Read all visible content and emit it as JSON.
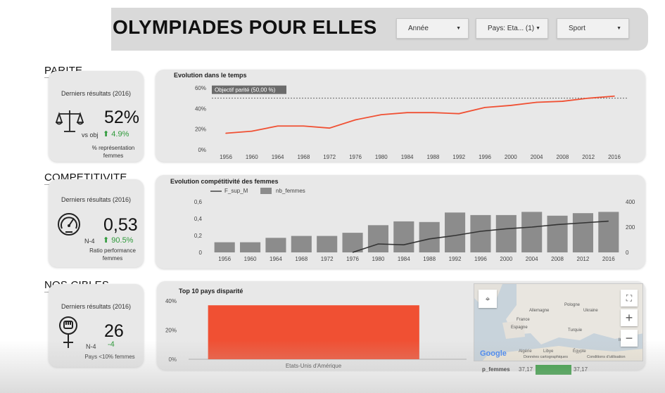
{
  "header": {
    "title": "OLYMPIADES POUR ELLES",
    "filters": [
      {
        "label": "Année"
      },
      {
        "label": "Pays: Eta... (1)"
      },
      {
        "label": "Sport"
      }
    ]
  },
  "colors": {
    "accent": "#f05033",
    "positive": "#2e9a3a",
    "bar_gray": "#8c8c8c",
    "panel": "#e8e8e8",
    "progress_green": "#2e9a3a"
  },
  "icons": {
    "parite": "balance-scale-icon",
    "competitivite": "speedometer-icon",
    "cibles": "female-fist-icon",
    "dropdown": "caret-down-icon"
  },
  "sections": {
    "parite": {
      "label": "PARITE",
      "kpi_title": "Derniers résultats (2016)",
      "value": "52%",
      "vs_label": "vs obj",
      "delta": "⬆ 4.9%",
      "caption_line1": "% représentation",
      "caption_line2": "femmes"
    },
    "competitivite": {
      "label": "COMPETITIVITE",
      "kpi_title": "Derniers résultats (2016)",
      "value": "0,53",
      "vs_label": "N-4",
      "delta": "⬆ 90.5%",
      "caption_line1": "Ratio performance",
      "caption_line2": "femmes"
    },
    "cibles": {
      "label": "NOS CIBLES",
      "kpi_title": "Derniers résultats (2016)",
      "value": "26",
      "vs_label": "N-4",
      "delta": "-4",
      "caption_line1": "Pays <10% femmes"
    }
  },
  "chart_data": [
    {
      "type": "line",
      "title": "Evolution dans le temps",
      "x": [
        "1956",
        "1960",
        "1964",
        "1968",
        "1972",
        "1976",
        "1980",
        "1984",
        "1988",
        "1992",
        "1996",
        "2000",
        "2004",
        "2008",
        "2012",
        "2016"
      ],
      "series": [
        {
          "values": [
            16,
            18,
            23,
            23,
            21,
            29,
            34,
            36,
            36,
            35,
            41,
            43,
            46,
            47,
            50,
            52
          ]
        }
      ],
      "ylim": [
        0,
        60
      ],
      "yticks": [
        "0%",
        "20%",
        "40%",
        "60%"
      ],
      "reference_line": {
        "label": "Objectif parité (50,00 %)",
        "value": 50
      },
      "xlabel": "",
      "ylabel": "",
      "grid": false
    },
    {
      "type": "bar",
      "title": "Evolution compétitivité des femmes",
      "categories": [
        "1956",
        "1960",
        "1964",
        "1968",
        "1972",
        "1976",
        "1980",
        "1984",
        "1988",
        "1992",
        "1996",
        "2000",
        "2004",
        "2008",
        "2012",
        "2016"
      ],
      "series": [
        {
          "name": "F_sup_M",
          "type": "line",
          "axis": "left",
          "values": [
            null,
            null,
            null,
            null,
            null,
            0,
            0.1,
            0.09,
            0.16,
            0.2,
            0.25,
            0.28,
            0.3,
            0.33,
            0.35,
            0.37
          ]
        },
        {
          "name": "nb_femmes",
          "type": "bar",
          "axis": "right",
          "values": [
            80,
            80,
            115,
            130,
            130,
            155,
            215,
            245,
            240,
            315,
            295,
            295,
            320,
            290,
            310,
            320
          ]
        }
      ],
      "ylim_left": [
        0,
        0.6
      ],
      "yticks_left": [
        "0",
        "0,2",
        "0,4",
        "0,6"
      ],
      "ylim_right": [
        0,
        400
      ],
      "yticks_right": [
        "0",
        "200",
        "400"
      ],
      "legend": "top-left",
      "xlabel": "",
      "ylabel": ""
    },
    {
      "type": "bar",
      "title": "Top 10 pays disparité",
      "categories": [
        "Etats-Unis d'Amérique"
      ],
      "values": [
        37
      ],
      "ylim": [
        0,
        40
      ],
      "yticks": [
        "0%",
        "20%",
        "40%"
      ],
      "xlabel": "",
      "ylabel": ""
    }
  ],
  "map": {
    "labels": [
      "Pologne",
      "Allemagne",
      "Ukraine",
      "France",
      "Espagne",
      "Turquie",
      "Algérie",
      "Libye",
      "Égypte",
      "Irak"
    ],
    "attribution": "Données cartographiques",
    "terms": "Conditions d'utilisation",
    "google": "Google",
    "zoom_in": "+",
    "zoom_out": "−",
    "fullscreen": "⛶"
  },
  "p_femmes": {
    "label": "p_femmes",
    "value_left": "37,17",
    "value_right": "37,17",
    "fill": 1.0
  }
}
